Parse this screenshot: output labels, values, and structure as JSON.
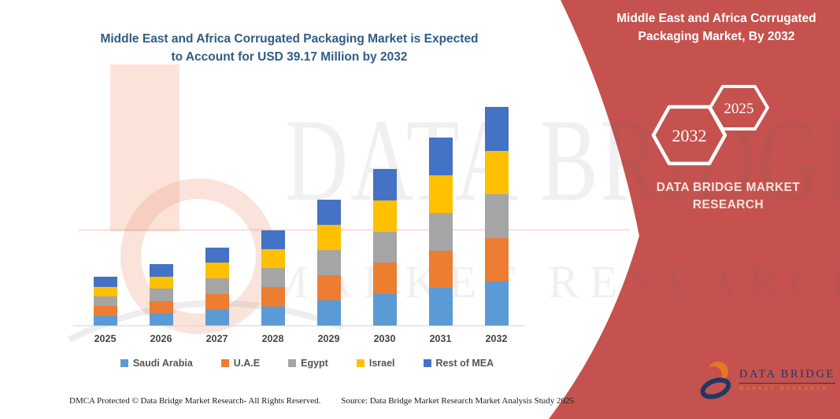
{
  "left_panel": {
    "title_line1": "Middle East and Africa Corrugated Packaging Market is Expected",
    "title_line2": "to Account for USD 39.17 Million by 2032"
  },
  "chart_data": {
    "type": "bar",
    "stacked": true,
    "title": "Middle East and Africa Corrugated Packaging Market is Expected to Account for USD 39.17 Million by 2032",
    "unit": "USD Million",
    "categories": [
      "2025",
      "2026",
      "2027",
      "2028",
      "2029",
      "2030",
      "2031",
      "2032"
    ],
    "series": [
      {
        "name": "Saudi Arabia",
        "color": "#5B9BD5",
        "values": [
          1.74,
          2.2,
          2.8,
          3.42,
          4.5,
          5.6,
          6.72,
          7.83
        ]
      },
      {
        "name": "U.A.E",
        "color": "#ED7D31",
        "values": [
          1.74,
          2.2,
          2.8,
          3.42,
          4.5,
          5.6,
          6.72,
          7.83
        ]
      },
      {
        "name": "Egypt",
        "color": "#A5A5A5",
        "values": [
          1.74,
          2.2,
          2.8,
          3.42,
          4.5,
          5.6,
          6.72,
          7.83
        ]
      },
      {
        "name": "Israel",
        "color": "#FFC000",
        "values": [
          1.74,
          2.2,
          2.8,
          3.42,
          4.5,
          5.6,
          6.72,
          7.83
        ]
      },
      {
        "name": "Rest of MEA",
        "color": "#4472C4",
        "values": [
          1.74,
          2.2,
          2.8,
          3.42,
          4.5,
          5.6,
          6.72,
          7.83
        ]
      }
    ],
    "totals_approx": [
      8.7,
      11.0,
      14.0,
      17.1,
      22.5,
      28.0,
      33.6,
      39.17
    ],
    "ylim": [
      0,
      40
    ],
    "grid": false,
    "y_axis_visible": false,
    "legend_position": "bottom"
  },
  "footer": {
    "dmca": "DMCA Protected © Data Bridge Market Research-  All Rights Reserved.",
    "source": "Source: Data Bridge Market Research  Market Analysis Study 2025"
  },
  "right_panel": {
    "title_line1": "Middle East and Africa Corrugated",
    "title_line2": "Packaging Market, By 2032",
    "hexagons": [
      {
        "label": "2025"
      },
      {
        "label": "2032"
      }
    ],
    "brand_line1": "DATA BRIDGE MARKET",
    "brand_line2": "RESEARCH",
    "logo": {
      "title": "DATA BRIDGE",
      "subtitle": "MARKET RESEARCH"
    }
  },
  "watermark": {
    "big_text": "DATA BRIDGE",
    "sub_text": "MARKET RESEARCH",
    "logo_b_icon": "data-bridge-b-watermark"
  },
  "colors": {
    "title_blue": "#2E5C87",
    "red_panel": "#C5524E",
    "axis_label": "#464646",
    "legend_label": "#555555",
    "logo_navy": "#1F3864",
    "logo_orange": "#E87722"
  }
}
